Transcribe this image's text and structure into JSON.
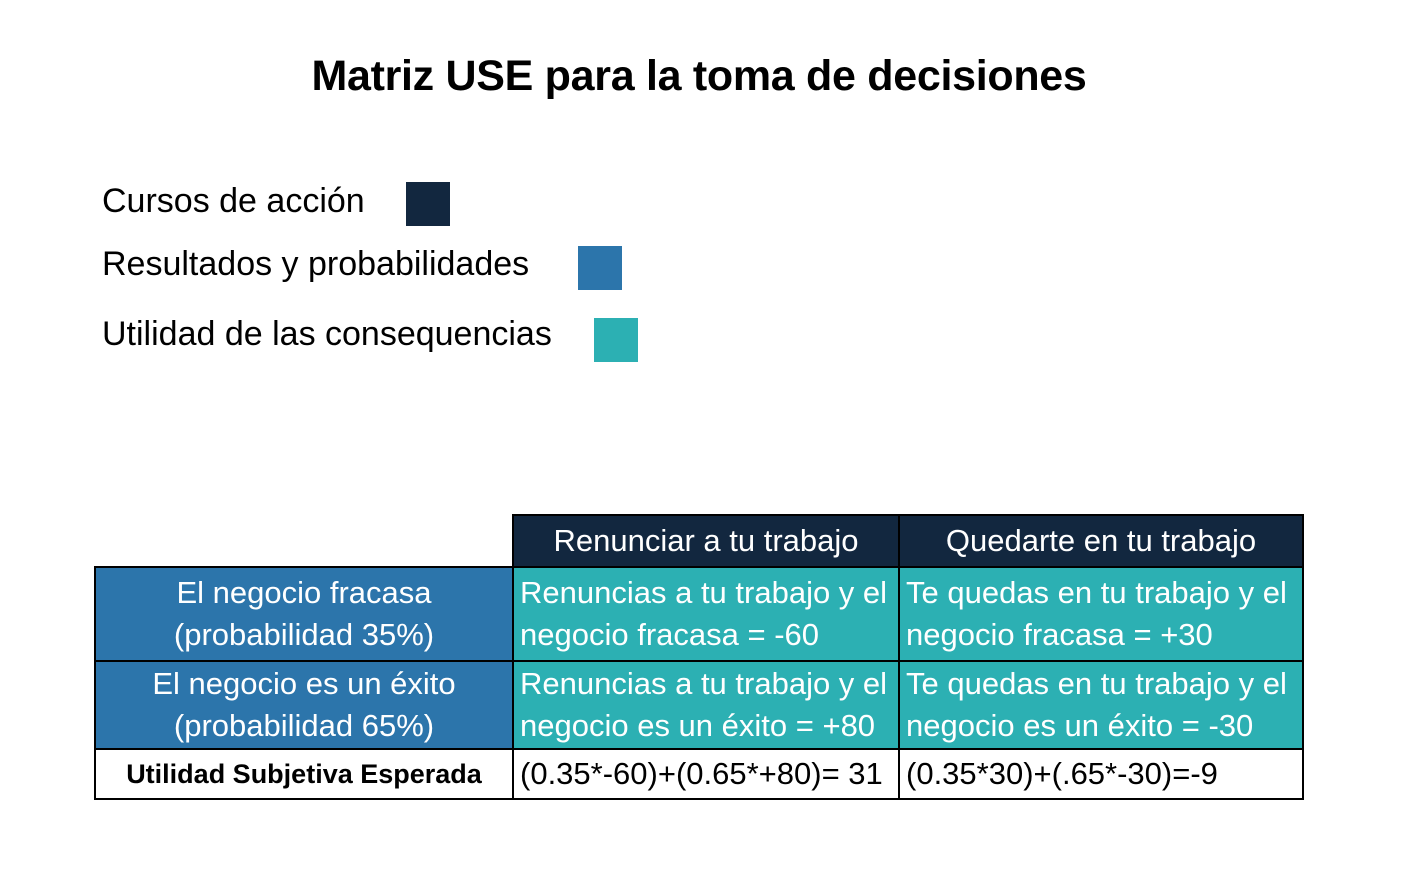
{
  "title": "Matriz USE para la toma de decisiones",
  "colors": {
    "cursos": "#12273f",
    "resultados": "#2c75ab",
    "utilidad": "#2cb0b3"
  },
  "legend": [
    {
      "label": "Cursos de acción"
    },
    {
      "label": "Resultados y probabilidades"
    },
    {
      "label": "Utilidad de las consequencias"
    }
  ],
  "table": {
    "columns": [
      "Renunciar a tu trabajo",
      "Quedarte en tu trabajo"
    ],
    "rows": [
      {
        "outcome_line1": "El negocio fracasa",
        "outcome_line2": "(probabilidad 35%)",
        "cells": [
          {
            "line1": "Renuncias a tu trabajo y el",
            "line2": "negocio fracasa = -60"
          },
          {
            "line1": "Te quedas en tu trabajo y el",
            "line2": "negocio fracasa = +30"
          }
        ]
      },
      {
        "outcome_line1": "El negocio es un éxito",
        "outcome_line2": "(probabilidad 65%)",
        "cells": [
          {
            "line1": "Renuncias a tu trabajo y el",
            "line2": "negocio es un éxito = +80"
          },
          {
            "line1": "Te quedas en tu trabajo y el",
            "line2": "negocio es un éxito = -30"
          }
        ]
      }
    ],
    "use_label": "Utilidad Subjetiva Esperada",
    "use_values": [
      "(0.35*-60)+(0.65*+80)= 31",
      "(0.35*30)+(.65*-30)=-9"
    ]
  }
}
